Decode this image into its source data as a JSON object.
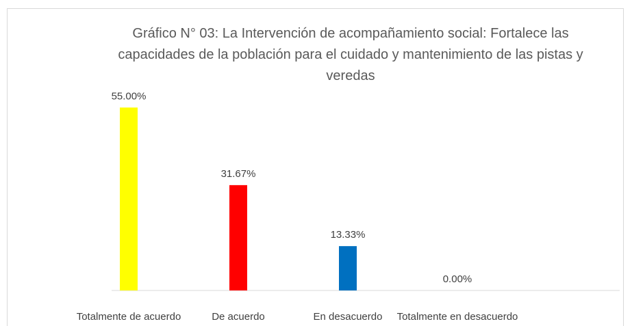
{
  "chart_data": {
    "type": "bar",
    "title": "Gráfico N° 03: La Intervención de acompañamiento social: Fortalece las capacidades de la población para el cuidado y mantenimiento de las pistas y veredas",
    "categories": [
      "Totalmente de acuerdo",
      "De acuerdo",
      "En desacuerdo",
      "Totalmente en desacuerdo"
    ],
    "values": [
      55,
      31.67,
      13.33,
      0
    ],
    "value_labels": [
      "55.00%",
      "31.67%",
      "13.33%",
      "0.00%"
    ],
    "colors": [
      "#ffff00",
      "#ff0000",
      "#0070c0",
      "#a5a5a5"
    ],
    "ylim": [
      0,
      60
    ]
  }
}
